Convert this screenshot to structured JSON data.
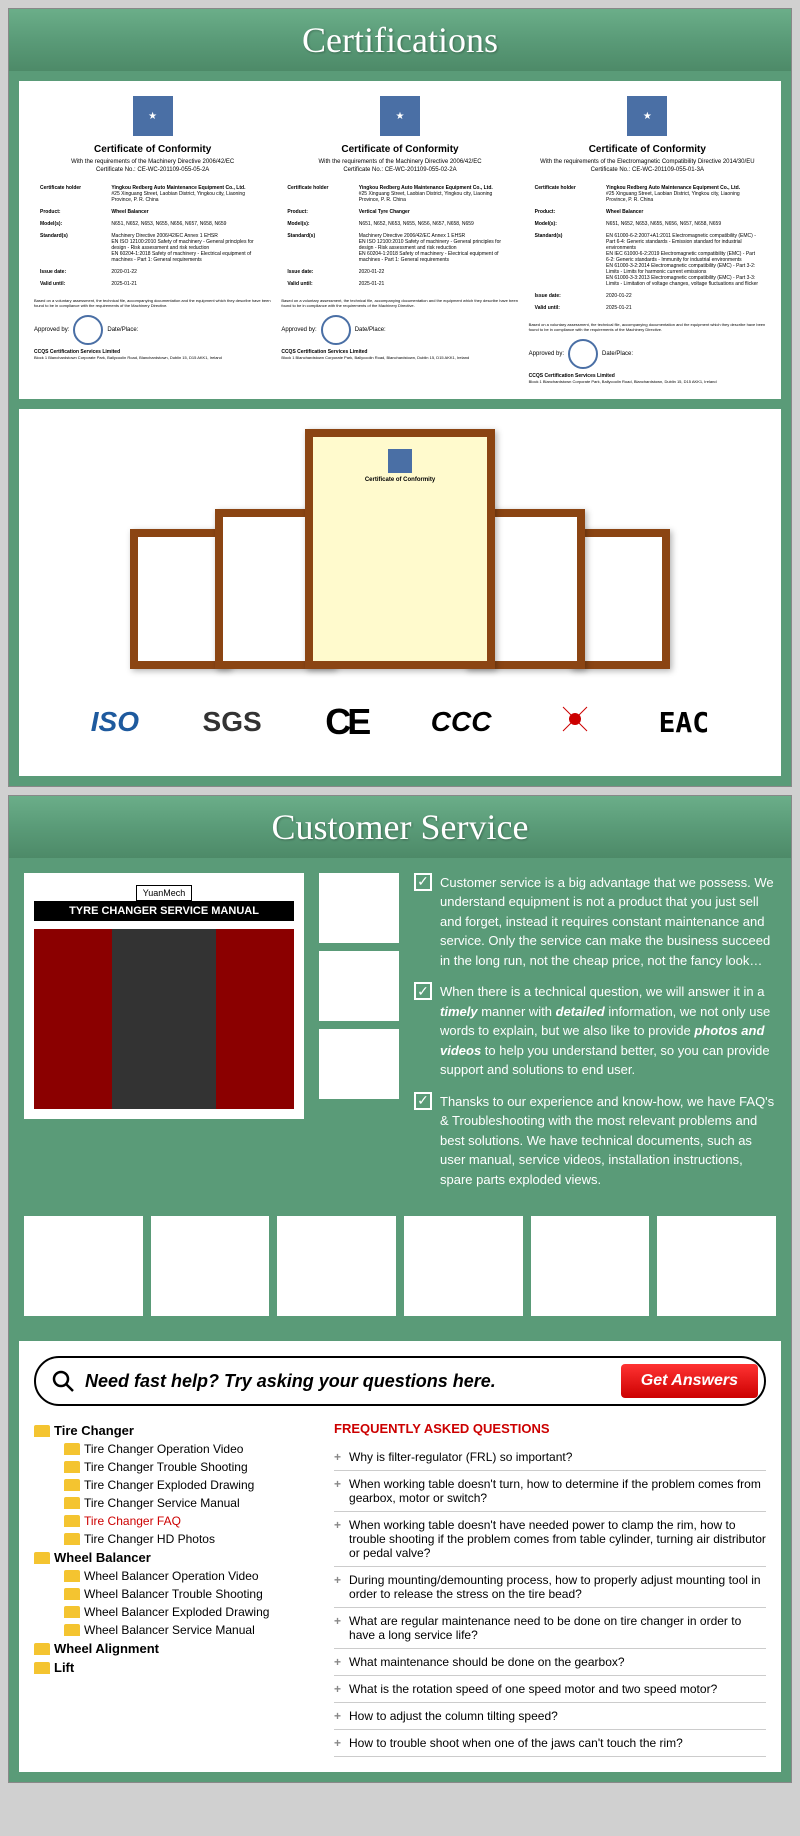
{
  "certifications": {
    "header": "Certifications",
    "certs": [
      {
        "title": "Certificate of Conformity",
        "subtitle": "With the requirements of the Machinery Directive 2006/42/EC",
        "certno": "Certificate No.: CE-WC-201109-055-05-2A",
        "holder_label": "Certificate holder",
        "holder": "Yingkou Redberg Auto Maintenance Equipment Co., Ltd.",
        "holder_addr": "#25 Xinguang Street, Laobian District, Yingkou city, Liaoning Province, P. R. China",
        "product_label": "Product:",
        "product": "Wheel Balancer",
        "models_label": "Model(s):",
        "models": "N651, N652, N653, N655, N656, N657, N658, N659",
        "standards_label": "Standard(s)",
        "standards": "Machinery Directive 2006/42/EC Annex 1 EHSR\nEN ISO 12100:2010 Safety of machinery - General principles for design - Risk assessment and risk reduction\nEN 60204-1:2018 Safety of machinery - Electrical equipment of machines - Part 1: General requirements",
        "issue_label": "Issue date:",
        "issue": "2020-01-22",
        "valid_label": "Valid until:",
        "valid": "2025-01-21",
        "company": "CCQS Certification Services Limited"
      },
      {
        "title": "Certificate of Conformity",
        "subtitle": "With the requirements of the Machinery Directive 2006/42/EC",
        "certno": "Certificate No.: CE-WC-201109-055-02-2A",
        "holder_label": "Certificate holder",
        "holder": "Yingkou Redberg Auto Maintenance Equipment Co., Ltd.",
        "holder_addr": "#25 Xinguang Street, Laobian District, Yingkou city, Liaoning Province, P. R. China",
        "product_label": "Product:",
        "product": "Vertical Tyre Changer",
        "models_label": "Model(s):",
        "models": "N651, N652, N653, N655, N656, N657, N658, N659",
        "standards_label": "Standard(s)",
        "standards": "Machinery Directive 2006/42/EC Annex 1 EHSR\nEN ISO 12100:2010 Safety of machinery - General principles for design - Risk assessment and risk reduction\nEN 60204-1:2018 Safety of machinery - Electrical equipment of machines - Part 1: General requirements",
        "issue_label": "Issue date:",
        "issue": "2020-01-22",
        "valid_label": "Valid until:",
        "valid": "2025-01-21",
        "company": "CCQS Certification Services Limited"
      },
      {
        "title": "Certificate of Conformity",
        "subtitle": "With the requirements of the Electromagnetic Compatibility Directive 2014/30/EU",
        "certno": "Certificate No.: CE-WC-201109-055-01-3A",
        "holder_label": "Certificate holder",
        "holder": "Yingkou Redberg Auto Maintenance Equipment Co., Ltd.",
        "holder_addr": "#25 Xinguang Street, Laobian District, Yingkou city, Liaoning Province, P. R. China",
        "product_label": "Product:",
        "product": "Wheel Balancer",
        "models_label": "Model(s):",
        "models": "N651, N652, N653, N655, N656, N657, N658, N659",
        "standards_label": "Standard(s)",
        "standards": "EN 61000-6-2:2007+A1:2011 Electromagnetic compatibility (EMC) - Part 6-4: Generic standards - Emission standard for industrial environments\nEN IEC 61000-6-2:2019 Electromagnetic compatibility (EMC) - Part 6-2: Generic standards - Immunity for industrial environments\nEN 61000-3-2:2014 Electromagnetic compatibility (EMC) - Part 3-2: Limits - Limits for harmonic current emissions\nEN 61000-3-3:2013 Electromagnetic compatibility (EMC) - Part 3-3: Limits - Limitation of voltage changes, voltage fluctuations and flicker",
        "issue_label": "Issue date:",
        "issue": "2020-01-22",
        "valid_label": "Valid until:",
        "valid": "2025-01-21",
        "company": "CCQS Certification Services Limited"
      }
    ],
    "logos": {
      "iso": "ISO",
      "sgs": "SGS",
      "ce": "CE",
      "ccc": "CCC",
      "eac": "EAC"
    }
  },
  "customer_service": {
    "header": "Customer Service",
    "manual_brand": "YuanMech",
    "manual_title": "TYRE CHANGER SERVICE MANUAL",
    "points": [
      "Customer service is a big advantage that we possess. We understand equipment is not a product that you just sell and forget, instead it requires constant maintenance and service. Only the service can make the business succeed in the long run, not the cheap price, not the fancy look…",
      "When there is a technical question, we will answer it in a <b>timely</b> manner with <b>detailed</b> information, we not only use words to explain, but we also like to provide <b>photos and videos</b> to help you understand better, so you can provide support and solutions to end user.",
      "Thansks to our experience and know-how, we have FAQ's & Troubleshooting with the most relevant problems and best solutions. We have technical documents, such as user manual, service videos, installation instructions, spare parts exploded views."
    ],
    "search": {
      "text": "Need fast help? Try asking your questions here.",
      "button": "Get Answers"
    },
    "tree": {
      "tire_changer": {
        "label": "Tire Changer",
        "items": [
          "Tire Changer Operation Video",
          "Tire Changer Trouble Shooting",
          "Tire Changer Exploded Drawing",
          "Tire Changer Service Manual",
          "Tire Changer FAQ",
          "Tire Changer HD Photos"
        ]
      },
      "wheel_balancer": {
        "label": "Wheel Balancer",
        "items": [
          "Wheel Balancer Operation Video",
          "Wheel Balancer Trouble Shooting",
          "Wheel Balancer Exploded Drawing",
          "Wheel Balancer Service Manual"
        ]
      },
      "wheel_alignment": {
        "label": "Wheel Alignment"
      },
      "lift": {
        "label": "Lift"
      }
    },
    "faq": {
      "header": "FREQUENTLY ASKED QUESTIONS",
      "questions": [
        "Why is filter-regulator (FRL) so important?",
        "When working table doesn't turn, how to determine if the problem comes from gearbox, motor or switch?",
        "When working table doesn't have needed power to clamp the rim, how to trouble shooting if the problem comes from table cylinder, turning air distributor or pedal valve?",
        "During mounting/demounting process, how to properly adjust mounting tool in order to release the stress on the tire bead?",
        "What are regular maintenance need to be done on tire changer in order to have a long service life?",
        "What maintenance should be done on the gearbox?",
        "What is the rotation speed of one speed motor and two speed motor?",
        "How to adjust the column tilting speed?",
        "How to trouble shoot when one of the jaws can't touch the rim?"
      ]
    }
  }
}
